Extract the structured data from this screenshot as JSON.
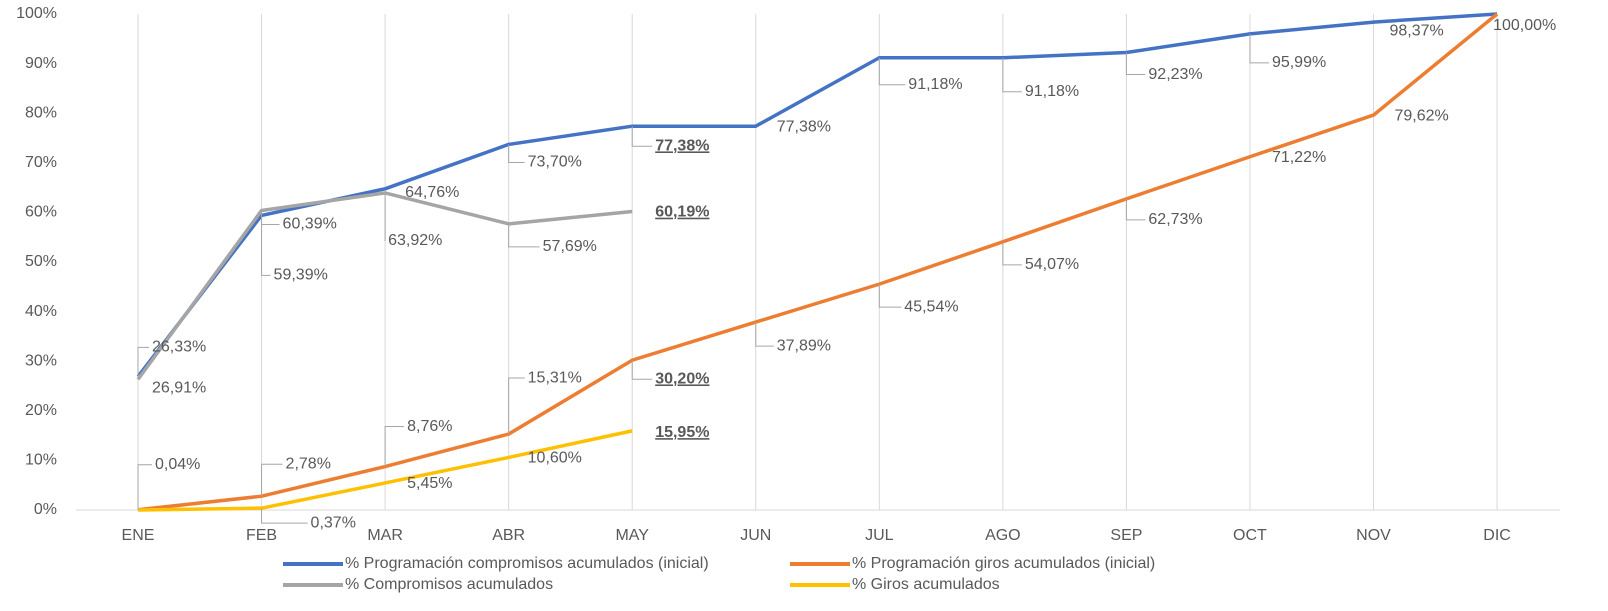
{
  "chart_data": {
    "type": "line",
    "categories": [
      "ENE",
      "FEB",
      "MAR",
      "ABR",
      "MAY",
      "JUN",
      "JUL",
      "AGO",
      "SEP",
      "OCT",
      "NOV",
      "DIC"
    ],
    "ylim": [
      0,
      100
    ],
    "yticks": [
      {
        "value": 0,
        "label": "0%"
      },
      {
        "value": 10,
        "label": "10%"
      },
      {
        "value": 20,
        "label": "20%"
      },
      {
        "value": 30,
        "label": "30%"
      },
      {
        "value": 40,
        "label": "40%"
      },
      {
        "value": 50,
        "label": "50%"
      },
      {
        "value": 60,
        "label": "60%"
      },
      {
        "value": 70,
        "label": "70%"
      },
      {
        "value": 80,
        "label": "80%"
      },
      {
        "value": 90,
        "label": "90%"
      },
      {
        "value": {
          "value": 100,
          "label": "100%"
        }
      }
    ],
    "highlight_index": 4,
    "series": [
      {
        "name": "% Programación compromisos acumulados (inicial)",
        "color": "#4472c4",
        "values": [
          26.91,
          59.39,
          64.76,
          73.7,
          77.38,
          77.38,
          91.18,
          91.18,
          92.23,
          95.99,
          98.37,
          100.0
        ],
        "value_labels": [
          "26,91%",
          "59,39%",
          "64,76%",
          "73,70%",
          "77,38%",
          "77,38%",
          "91,18%",
          "91,18%",
          "92,23%",
          "95,99%",
          "98,37%",
          "100,00%"
        ]
      },
      {
        "name": "% Programación giros acumulados (inicial)",
        "color": "#ed7d31",
        "values": [
          0.04,
          2.78,
          8.76,
          15.31,
          30.2,
          37.89,
          45.54,
          54.07,
          62.73,
          71.22,
          79.62,
          100.0
        ],
        "value_labels": [
          "0,04%",
          "2,78%",
          "8,76%",
          "15,31%",
          "30,20%",
          "37,89%",
          "45,54%",
          "54,07%",
          "62,73%",
          "71,22%",
          "79,62%",
          null
        ]
      },
      {
        "name": "% Compromisos acumulados",
        "color": "#a5a5a5",
        "values": [
          26.33,
          60.39,
          63.92,
          57.69,
          60.19,
          null,
          null,
          null,
          null,
          null,
          null,
          null
        ],
        "value_labels": [
          "26,33%",
          "60,39%",
          "63,92%",
          "57,69%",
          "60,19%",
          null,
          null,
          null,
          null,
          null,
          null,
          null
        ]
      },
      {
        "name": "% Giros acumulados",
        "color": "#ffc000",
        "values": [
          0,
          0.37,
          5.45,
          10.6,
          15.95,
          null,
          null,
          null,
          null,
          null,
          null,
          null
        ],
        "value_labels": [
          null,
          "0,37%",
          "5,45%",
          "10,60%",
          "15,95%",
          null,
          null,
          null,
          null,
          null,
          null,
          null
        ]
      }
    ]
  }
}
